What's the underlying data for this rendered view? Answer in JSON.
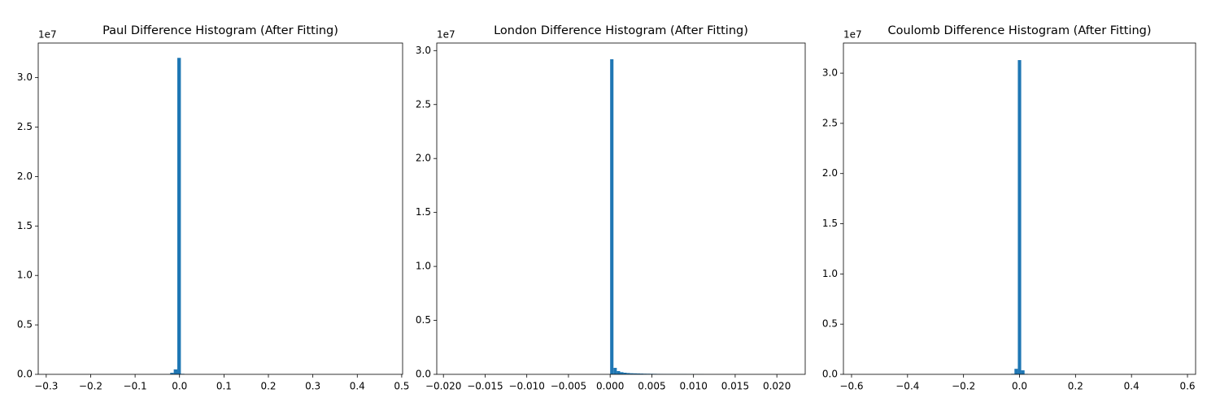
{
  "chart_data": [
    {
      "type": "histogram",
      "title": "Paul Difference Histogram (After Fitting)",
      "offset_text": "1e7",
      "color": "#1f77b4",
      "bins": [
        -0.021,
        -0.013,
        -0.005,
        0.003,
        0.011
      ],
      "values": [
        150000,
        500000,
        32000000,
        50000
      ],
      "xlim": [
        -0.318,
        0.502
      ],
      "xticks": [
        {
          "value": -0.3,
          "label": "−0.3"
        },
        {
          "value": -0.2,
          "label": "−0.2"
        },
        {
          "value": -0.1,
          "label": "−0.1"
        },
        {
          "value": 0,
          "label": "0.0"
        },
        0.1,
        0.2,
        0.3,
        0.4,
        0.5
      ],
      "ylim": [
        0,
        33500000
      ],
      "yticks": [
        {
          "value": 0,
          "label": "0.0"
        },
        {
          "value": 5000000,
          "label": "0.5"
        },
        {
          "value": 10000000,
          "label": "1.0"
        },
        {
          "value": 15000000,
          "label": "1.5"
        },
        {
          "value": 20000000,
          "label": "2.0"
        },
        {
          "value": 25000000,
          "label": "2.5"
        },
        {
          "value": 30000000,
          "label": "3.0"
        }
      ]
    },
    {
      "type": "histogram",
      "title": "London Difference Histogram (After Fitting)",
      "offset_text": "1e7",
      "color": "#1f77b4",
      "bins": [
        0,
        0.0004,
        0.0008,
        0.0012,
        0.0016,
        0.002,
        0.0024,
        0.0028,
        0.0032,
        0.0036,
        0.004,
        0.0044,
        0.0048,
        0.0052,
        0.0056,
        0.006,
        0.0064,
        0.0068,
        0.0072,
        0.0076,
        0.008,
        0.0084,
        0.0088,
        0.0092,
        0.0096,
        0.01,
        0.0104,
        0.0108,
        0.0112
      ],
      "values": [
        29200000,
        600000,
        300000,
        200000,
        150000,
        120000,
        100000,
        90000,
        80000,
        70000,
        60000,
        55000,
        50000,
        45000,
        40000,
        35000,
        30000,
        28000,
        26000,
        24000,
        22000,
        20000,
        18000,
        16000,
        15000,
        14000,
        12000,
        10000
      ],
      "xlim": [
        -0.0208,
        0.0234
      ],
      "xticks": [
        {
          "value": -0.02,
          "label": "−0.020"
        },
        {
          "value": -0.015,
          "label": "−0.015"
        },
        {
          "value": -0.01,
          "label": "−0.010"
        },
        {
          "value": -0.005,
          "label": "−0.005"
        },
        {
          "value": 0,
          "label": "0.000"
        },
        0.005,
        {
          "value": 0.01,
          "label": "0.010"
        },
        0.015,
        {
          "value": 0.02,
          "label": "0.020"
        }
      ],
      "ylim": [
        0,
        30700000
      ],
      "yticks": [
        {
          "value": 0,
          "label": "0.0"
        },
        {
          "value": 5000000,
          "label": "0.5"
        },
        {
          "value": 10000000,
          "label": "1.0"
        },
        {
          "value": 15000000,
          "label": "1.5"
        },
        {
          "value": 20000000,
          "label": "2.0"
        },
        {
          "value": 25000000,
          "label": "2.5"
        },
        {
          "value": 30000000,
          "label": "3.0"
        }
      ]
    },
    {
      "type": "histogram",
      "title": "Coulomb Difference Histogram (After Fitting)",
      "offset_text": "1e7",
      "color": "#1f77b4",
      "bins": [
        -0.03,
        -0.018,
        -0.006,
        0.006,
        0.018,
        0.03
      ],
      "values": [
        50000,
        550000,
        31300000,
        400000,
        40000
      ],
      "xlim": [
        -0.629,
        0.629
      ],
      "xticks": [
        {
          "value": -0.6,
          "label": "−0.6"
        },
        {
          "value": -0.4,
          "label": "−0.4"
        },
        {
          "value": -0.2,
          "label": "−0.2"
        },
        {
          "value": 0,
          "label": "0.0"
        },
        0.2,
        0.4,
        0.6
      ],
      "ylim": [
        0,
        33000000
      ],
      "yticks": [
        {
          "value": 0,
          "label": "0.0"
        },
        {
          "value": 5000000,
          "label": "0.5"
        },
        {
          "value": 10000000,
          "label": "1.0"
        },
        {
          "value": 15000000,
          "label": "1.5"
        },
        {
          "value": 20000000,
          "label": "2.0"
        },
        {
          "value": 25000000,
          "label": "2.5"
        },
        {
          "value": 30000000,
          "label": "3.0"
        }
      ]
    }
  ]
}
